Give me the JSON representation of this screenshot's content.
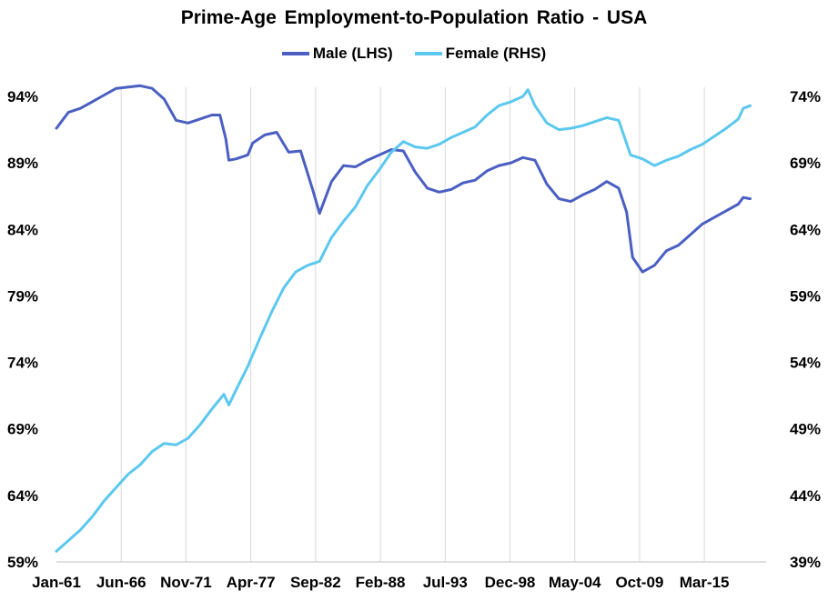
{
  "chart_data": {
    "type": "line",
    "title": "Prime-Age  Employment-to-Population  Ratio  - USA",
    "x_tick_labels": [
      "Jan-61",
      "Jun-66",
      "Nov-71",
      "Apr-77",
      "Sep-82",
      "Feb-88",
      "Jul-93",
      "Dec-98",
      "May-04",
      "Oct-09",
      "Mar-15"
    ],
    "y_left": {
      "ticks": [
        "59%",
        "64%",
        "69%",
        "74%",
        "79%",
        "84%",
        "89%",
        "94%"
      ],
      "range": [
        59,
        94
      ]
    },
    "y_right": {
      "ticks": [
        "39%",
        "44%",
        "49%",
        "54%",
        "59%",
        "64%",
        "69%",
        "74%"
      ],
      "range": [
        39,
        74
      ]
    },
    "grid": "vertical",
    "legend": "top-center",
    "series": [
      {
        "name": "Male (LHS)",
        "axis": "left",
        "color": "#4a5fc1",
        "points": [
          [
            "1961-01",
            91.6
          ],
          [
            "1962-01",
            92.8
          ],
          [
            "1963-01",
            93.1
          ],
          [
            "1964-01",
            93.6
          ],
          [
            "1965-01",
            94.1
          ],
          [
            "1966-01",
            94.6
          ],
          [
            "1967-01",
            94.7
          ],
          [
            "1968-01",
            94.8
          ],
          [
            "1969-01",
            94.6
          ],
          [
            "1970-01",
            93.8
          ],
          [
            "1971-01",
            92.2
          ],
          [
            "1972-01",
            92.0
          ],
          [
            "1973-01",
            92.3
          ],
          [
            "1974-01",
            92.6
          ],
          [
            "1974-09",
            92.6
          ],
          [
            "1975-03",
            90.8
          ],
          [
            "1975-06",
            89.2
          ],
          [
            "1976-01",
            89.3
          ],
          [
            "1977-01",
            89.6
          ],
          [
            "1977-06",
            90.5
          ],
          [
            "1978-06",
            91.1
          ],
          [
            "1979-06",
            91.3
          ],
          [
            "1980-06",
            89.8
          ],
          [
            "1981-06",
            89.9
          ],
          [
            "1982-06",
            87.0
          ],
          [
            "1983-01",
            85.2
          ],
          [
            "1984-01",
            87.6
          ],
          [
            "1985-01",
            88.8
          ],
          [
            "1986-01",
            88.7
          ],
          [
            "1987-01",
            89.2
          ],
          [
            "1988-01",
            89.6
          ],
          [
            "1989-01",
            90.0
          ],
          [
            "1990-01",
            89.9
          ],
          [
            "1991-01",
            88.3
          ],
          [
            "1992-01",
            87.1
          ],
          [
            "1993-01",
            86.8
          ],
          [
            "1994-01",
            87.0
          ],
          [
            "1995-01",
            87.5
          ],
          [
            "1996-01",
            87.7
          ],
          [
            "1997-01",
            88.4
          ],
          [
            "1998-01",
            88.8
          ],
          [
            "1999-01",
            89.0
          ],
          [
            "2000-01",
            89.4
          ],
          [
            "2001-01",
            89.2
          ],
          [
            "2002-01",
            87.4
          ],
          [
            "2003-01",
            86.3
          ],
          [
            "2004-01",
            86.1
          ],
          [
            "2005-01",
            86.6
          ],
          [
            "2006-01",
            87.0
          ],
          [
            "2007-01",
            87.6
          ],
          [
            "2008-01",
            87.1
          ],
          [
            "2008-09",
            85.3
          ],
          [
            "2009-03",
            81.9
          ],
          [
            "2010-01",
            80.8
          ],
          [
            "2011-01",
            81.3
          ],
          [
            "2012-01",
            82.4
          ],
          [
            "2013-01",
            82.8
          ],
          [
            "2014-01",
            83.6
          ],
          [
            "2015-01",
            84.4
          ],
          [
            "2016-01",
            84.9
          ],
          [
            "2017-01",
            85.4
          ],
          [
            "2018-01",
            85.9
          ],
          [
            "2018-06",
            86.4
          ],
          [
            "2019-01",
            86.3
          ]
        ]
      },
      {
        "name": "Female (RHS)",
        "axis": "right",
        "color": "#5bc8ee",
        "points": [
          [
            "1961-01",
            39.8
          ],
          [
            "1962-01",
            40.6
          ],
          [
            "1963-01",
            41.4
          ],
          [
            "1964-01",
            42.4
          ],
          [
            "1965-01",
            43.6
          ],
          [
            "1966-01",
            44.6
          ],
          [
            "1967-01",
            45.6
          ],
          [
            "1968-01",
            46.3
          ],
          [
            "1969-01",
            47.3
          ],
          [
            "1970-01",
            47.9
          ],
          [
            "1971-01",
            47.8
          ],
          [
            "1972-01",
            48.3
          ],
          [
            "1973-01",
            49.3
          ],
          [
            "1974-01",
            50.5
          ],
          [
            "1975-01",
            51.6
          ],
          [
            "1975-06",
            50.8
          ],
          [
            "1976-01",
            51.9
          ],
          [
            "1977-01",
            53.7
          ],
          [
            "1978-01",
            55.8
          ],
          [
            "1979-01",
            57.8
          ],
          [
            "1980-01",
            59.6
          ],
          [
            "1981-01",
            60.8
          ],
          [
            "1982-01",
            61.3
          ],
          [
            "1983-01",
            61.6
          ],
          [
            "1984-01",
            63.4
          ],
          [
            "1985-01",
            64.6
          ],
          [
            "1986-01",
            65.7
          ],
          [
            "1987-01",
            67.3
          ],
          [
            "1988-01",
            68.5
          ],
          [
            "1989-01",
            69.8
          ],
          [
            "1990-01",
            70.6
          ],
          [
            "1991-01",
            70.2
          ],
          [
            "1992-01",
            70.1
          ],
          [
            "1993-01",
            70.4
          ],
          [
            "1994-01",
            70.9
          ],
          [
            "1995-01",
            71.3
          ],
          [
            "1996-01",
            71.7
          ],
          [
            "1997-01",
            72.6
          ],
          [
            "1998-01",
            73.3
          ],
          [
            "1999-01",
            73.6
          ],
          [
            "2000-01",
            74.0
          ],
          [
            "2000-06",
            74.5
          ],
          [
            "2001-01",
            73.3
          ],
          [
            "2002-01",
            72.0
          ],
          [
            "2003-01",
            71.5
          ],
          [
            "2004-01",
            71.6
          ],
          [
            "2005-01",
            71.8
          ],
          [
            "2006-01",
            72.1
          ],
          [
            "2007-01",
            72.4
          ],
          [
            "2008-01",
            72.2
          ],
          [
            "2009-01",
            69.6
          ],
          [
            "2010-01",
            69.3
          ],
          [
            "2011-01",
            68.8
          ],
          [
            "2012-01",
            69.2
          ],
          [
            "2013-01",
            69.5
          ],
          [
            "2014-01",
            70.0
          ],
          [
            "2015-01",
            70.4
          ],
          [
            "2016-01",
            71.0
          ],
          [
            "2017-01",
            71.6
          ],
          [
            "2018-01",
            72.3
          ],
          [
            "2018-06",
            73.1
          ],
          [
            "2019-01",
            73.3
          ]
        ]
      }
    ]
  }
}
